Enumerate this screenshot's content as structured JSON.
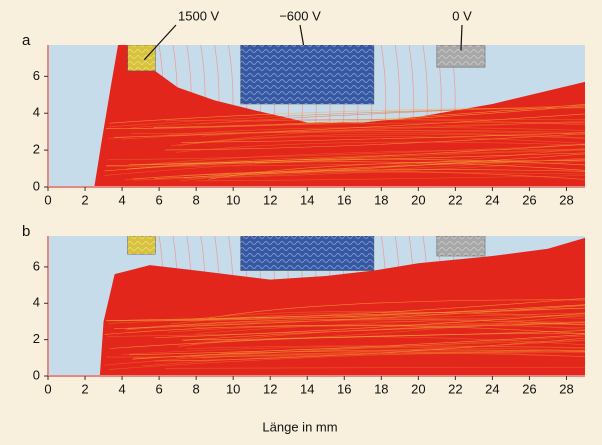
{
  "chart_data": [
    {
      "type": "trajectory",
      "panel_label": "a",
      "annotations": [
        "1500 V",
        "−600 V",
        "0 V"
      ],
      "xlim": [
        0,
        29
      ],
      "ylim": [
        0,
        7.7
      ],
      "xticks": [
        0,
        2,
        4,
        6,
        8,
        10,
        12,
        14,
        16,
        18,
        20,
        22,
        24,
        26,
        28
      ],
      "yticks": [
        0,
        2,
        4,
        6
      ]
    },
    {
      "type": "trajectory",
      "panel_label": "b",
      "xlabel": "Länge in mm",
      "xlim": [
        0,
        29
      ],
      "ylim": [
        0,
        7.7
      ],
      "xticks": [
        0,
        2,
        4,
        6,
        8,
        10,
        12,
        14,
        16,
        18,
        20,
        22,
        24,
        26,
        28
      ],
      "yticks": [
        0,
        2,
        4,
        6
      ]
    }
  ]
}
